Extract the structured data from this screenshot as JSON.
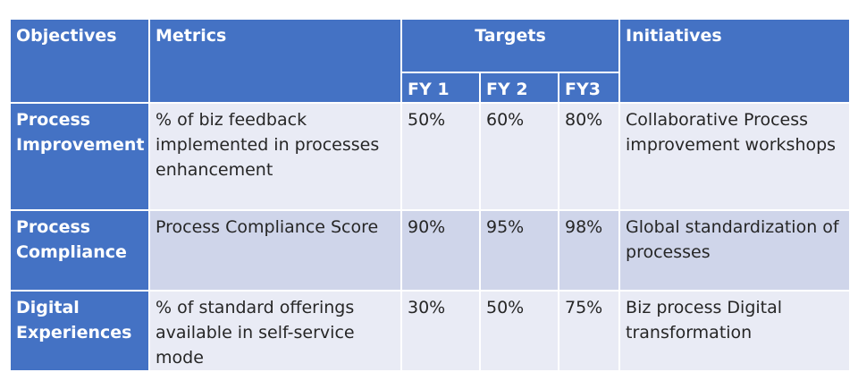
{
  "headers": {
    "objectives": "Objectives",
    "metrics": "Metrics",
    "targets": "Targets",
    "initiatives": "Initiatives",
    "fy1": "FY 1",
    "fy2": "FY 2",
    "fy3": "FY3"
  },
  "rows": [
    {
      "objective": "Process Improvement",
      "metric": "% of biz feedback implemented in processes enhancement",
      "fy1": "50%",
      "fy2": "60%",
      "fy3": "80%",
      "initiative": "Collaborative Process improvement workshops"
    },
    {
      "objective": "Process Compliance",
      "metric": "Process Compliance Score",
      "fy1": "90%",
      "fy2": "95%",
      "fy3": "98%",
      "initiative": "Global standardization of processes"
    },
    {
      "objective": "Digital Experiences",
      "metric": "% of standard offerings available in self-service mode",
      "fy1": "30%",
      "fy2": "50%",
      "fy3": "75%",
      "initiative": "Biz process Digital transformation"
    }
  ],
  "colors": {
    "header_blue": "#4472c4",
    "row_light": "#e9ebf5",
    "row_dark": "#cfd5ea",
    "text_dark": "#262626"
  }
}
